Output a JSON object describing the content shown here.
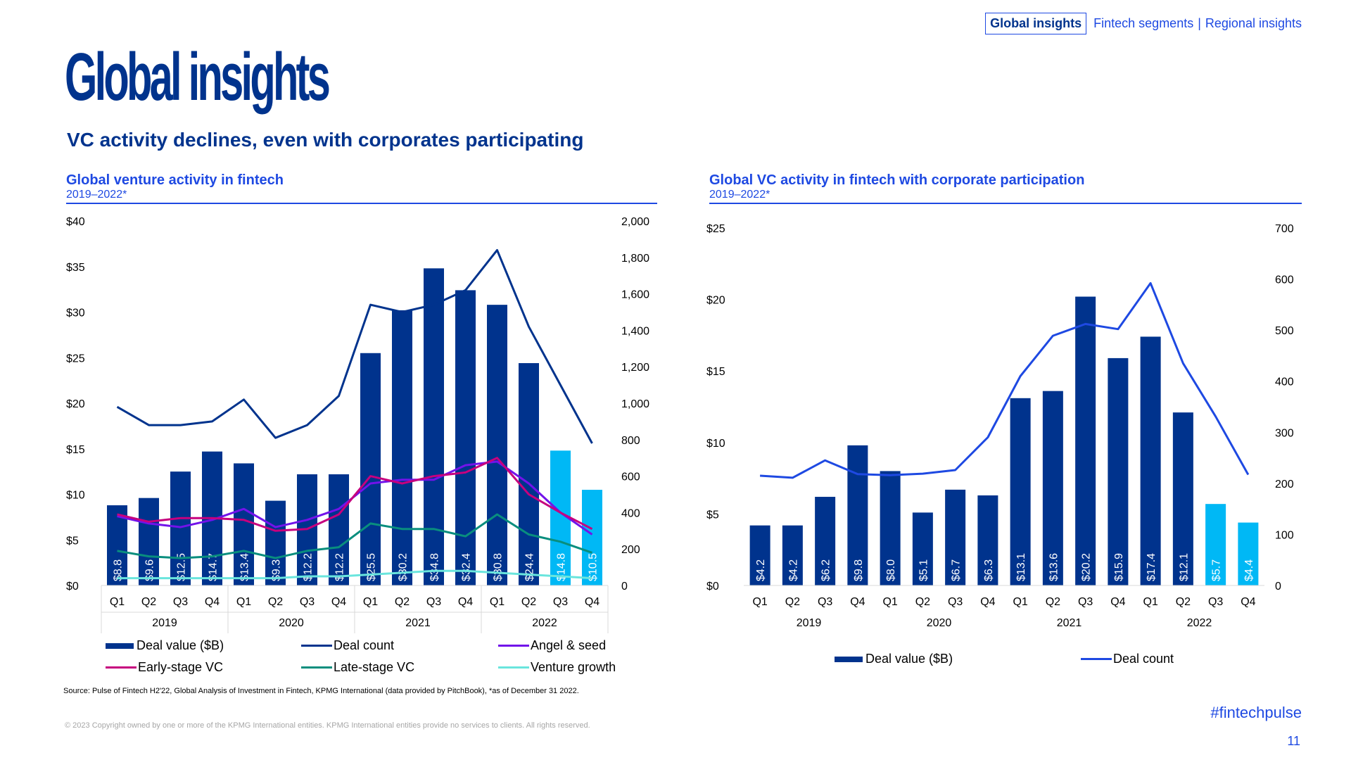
{
  "nav": {
    "active": "Global insights",
    "links": [
      "Fintech segments",
      "Regional insights"
    ],
    "separator": "|"
  },
  "page": {
    "title": "Global insights",
    "subtitle": "VC activity declines, even with corporates participating"
  },
  "colors": {
    "brand": "#00338d",
    "accent": "#1e49e2",
    "bar_dark": "#00338d",
    "bar_light": "#00b8f5",
    "angel": "#7213ea",
    "early": "#c6007e",
    "late": "#098e7e",
    "growth": "#6ae5dd"
  },
  "chart_data": [
    {
      "type": "bar",
      "title": "Global venture activity in fintech",
      "period": "2019–2022*",
      "categories": [
        "Q1",
        "Q2",
        "Q3",
        "Q4",
        "Q1",
        "Q2",
        "Q3",
        "Q4",
        "Q1",
        "Q2",
        "Q3",
        "Q4",
        "Q1",
        "Q2",
        "Q3",
        "Q4"
      ],
      "years": [
        "2019",
        "2020",
        "2021",
        "2022"
      ],
      "y_left": {
        "ticks": [
          "$0",
          "$5",
          "$10",
          "$15",
          "$20",
          "$25",
          "$30",
          "$35",
          "$40"
        ],
        "max": 40
      },
      "y_right": {
        "ticks": [
          "0",
          "200",
          "400",
          "600",
          "800",
          "1,000",
          "1,200",
          "1,400",
          "1,600",
          "1,800",
          "2,000"
        ],
        "max": 2000
      },
      "bars": {
        "name": "Deal value ($B)",
        "values": [
          8.8,
          9.6,
          12.5,
          14.7,
          13.4,
          9.3,
          12.2,
          12.2,
          25.5,
          30.2,
          34.8,
          32.4,
          30.8,
          24.4,
          14.8,
          10.5
        ],
        "labels": [
          "$8.8",
          "$9.6",
          "$12.5",
          "$14.7",
          "$13.4",
          "$9.3",
          "$12.2",
          "$12.2",
          "$25.5",
          "$30.2",
          "$34.8",
          "$32.4",
          "$30.8",
          "$24.4",
          "$14.8",
          "$10.5"
        ],
        "highlight_from": 14
      },
      "series": [
        {
          "name": "Deal count",
          "color_key": "bar_dark",
          "values": [
            980,
            880,
            880,
            900,
            1020,
            810,
            880,
            1040,
            1540,
            1500,
            1540,
            1620,
            1840,
            1420,
            1100,
            780
          ]
        },
        {
          "name": "Angel & seed",
          "color_key": "angel",
          "values": [
            380,
            340,
            320,
            360,
            420,
            320,
            360,
            420,
            560,
            580,
            580,
            660,
            680,
            560,
            400,
            280
          ]
        },
        {
          "name": "Early-stage VC",
          "color_key": "early",
          "values": [
            390,
            350,
            370,
            370,
            360,
            300,
            310,
            390,
            600,
            560,
            600,
            620,
            700,
            500,
            400,
            310
          ]
        },
        {
          "name": "Late-stage VC",
          "color_key": "late",
          "values": [
            190,
            160,
            150,
            160,
            190,
            150,
            190,
            210,
            340,
            310,
            310,
            270,
            390,
            280,
            240,
            180
          ]
        },
        {
          "name": "Venture growth",
          "color_key": "growth",
          "values": [
            40,
            40,
            40,
            40,
            40,
            40,
            50,
            50,
            60,
            70,
            80,
            80,
            70,
            60,
            50,
            40
          ]
        }
      ],
      "legend": [
        "Deal value ($B)",
        "Deal count",
        "Angel & seed",
        "Early-stage VC",
        "Late-stage VC",
        "Venture growth"
      ]
    },
    {
      "type": "bar",
      "title": "Global VC activity in fintech with corporate participation",
      "period": "2019–2022*",
      "categories": [
        "Q1",
        "Q2",
        "Q3",
        "Q4",
        "Q1",
        "Q2",
        "Q3",
        "Q4",
        "Q1",
        "Q2",
        "Q3",
        "Q4",
        "Q1",
        "Q2",
        "Q3",
        "Q4"
      ],
      "years": [
        "2019",
        "2020",
        "2021",
        "2022"
      ],
      "y_left": {
        "ticks": [
          "$0",
          "$5",
          "$10",
          "$15",
          "$20",
          "$25"
        ],
        "max": 25
      },
      "y_right": {
        "ticks": [
          "0",
          "100",
          "200",
          "300",
          "400",
          "500",
          "600",
          "700"
        ],
        "max": 700
      },
      "bars": {
        "name": "Deal value ($B)",
        "values": [
          4.2,
          4.2,
          6.2,
          9.8,
          8.0,
          5.1,
          6.7,
          6.3,
          13.1,
          13.6,
          20.2,
          15.9,
          17.4,
          12.1,
          5.7,
          4.4
        ],
        "labels": [
          "$4.2",
          "$4.2",
          "$6.2",
          "$9.8",
          "$8.0",
          "$5.1",
          "$6.7",
          "$6.3",
          "$13.1",
          "$13.6",
          "$20.2",
          "$15.9",
          "$17.4",
          "$12.1",
          "$5.7",
          "$4.4"
        ],
        "highlight_from": 14
      },
      "series": [
        {
          "name": "Deal count",
          "color_key": "accent",
          "values": [
            215,
            211,
            245,
            218,
            216,
            219,
            226,
            290,
            410,
            489,
            512,
            502,
            592,
            435,
            331,
            217
          ]
        }
      ],
      "legend": [
        "Deal value ($B)",
        "Deal count"
      ]
    }
  ],
  "footer": {
    "source": "Source: Pulse of Fintech H2'22, Global Analysis of Investment in Fintech, KPMG International (data provided by PitchBook), *as of December 31 2022.",
    "copyright": "© 2023 Copyright owned by one or more of the KPMG International entities. KPMG International entities provide no services to clients. All rights reserved.",
    "hashtag": "#fintechpulse",
    "page_number": "11"
  }
}
